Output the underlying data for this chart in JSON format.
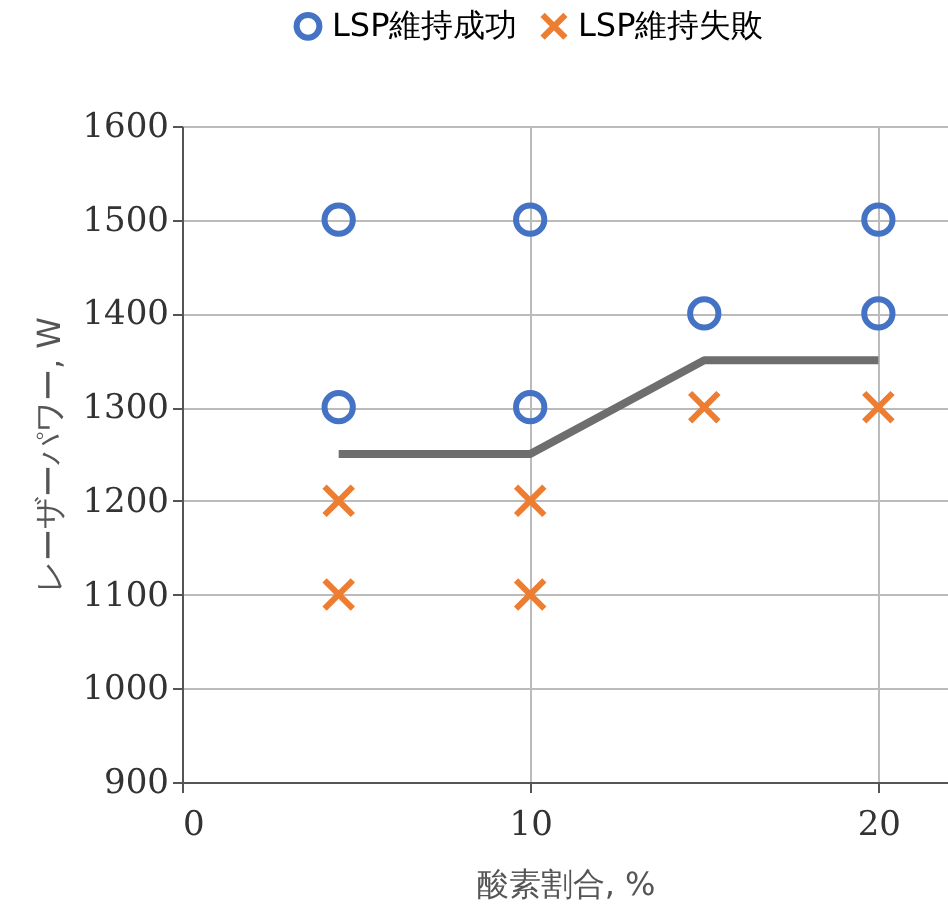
{
  "chart_data": {
    "type": "scatter",
    "xlabel": "酸素割合, %",
    "ylabel": "レーザーパワー, W",
    "xlim": [
      0,
      22
    ],
    "xticks": [
      0,
      10,
      20
    ],
    "ylim": [
      900,
      1600
    ],
    "yticks": [
      900,
      1000,
      1100,
      1200,
      1300,
      1400,
      1500,
      1600
    ],
    "grid": true,
    "legend": "top",
    "series": [
      {
        "name": "LSP維持成功",
        "color": "#4472c4",
        "marker": "circle",
        "x": [
          4.5,
          4.5,
          10,
          10,
          15,
          20,
          20
        ],
        "values": [
          1500,
          1300,
          1500,
          1300,
          1400,
          1500,
          1400
        ]
      },
      {
        "name": "LSP維持失敗",
        "color": "#ed7d31",
        "marker": "cross",
        "x": [
          4.5,
          4.5,
          10,
          10,
          15,
          20
        ],
        "values": [
          1200,
          1100,
          1200,
          1100,
          1300,
          1300
        ]
      },
      {
        "type": "line",
        "color": "#6e6e6e",
        "marker": "none",
        "line_style": "solid",
        "x": [
          4.5,
          10,
          15,
          20
        ],
        "values": [
          1250,
          1250,
          1350,
          1350
        ]
      }
    ]
  }
}
